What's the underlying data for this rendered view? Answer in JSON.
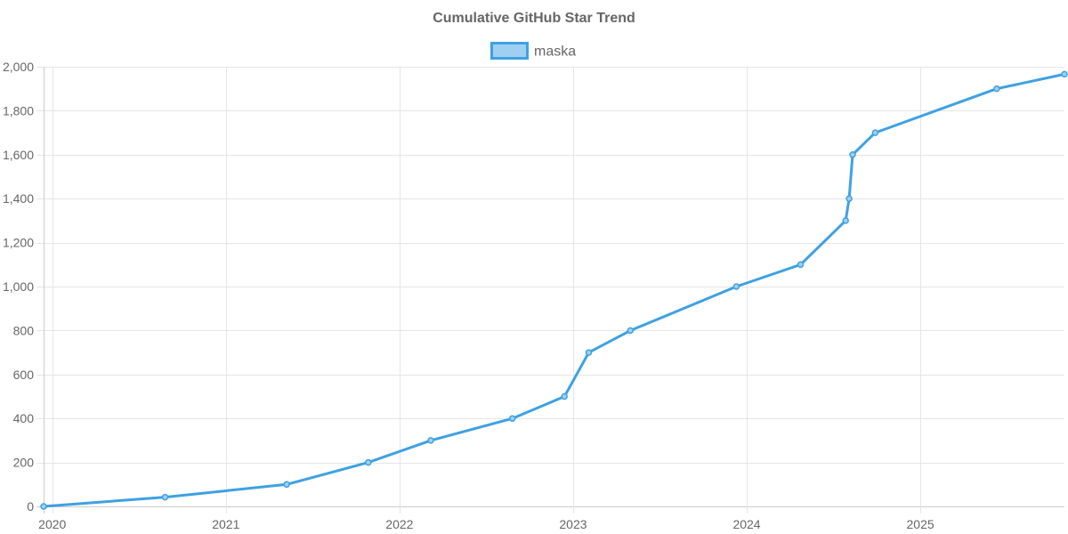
{
  "chart_data": {
    "type": "line",
    "title": "Cumulative GitHub Star Trend",
    "xlabel": "",
    "ylabel": "",
    "ylim": [
      0,
      2000
    ],
    "yticks": [
      0,
      200,
      400,
      600,
      800,
      1000,
      1200,
      1400,
      1600,
      1800,
      2000
    ],
    "ytick_labels": [
      "0",
      "200",
      "400",
      "600",
      "800",
      "1,000",
      "1,200",
      "1,400",
      "1,600",
      "1,800",
      "2,000"
    ],
    "xlim": [
      2019.95,
      2025.83
    ],
    "xticks": [
      2020,
      2021,
      2022,
      2023,
      2024,
      2025
    ],
    "xtick_labels": [
      "2020",
      "2021",
      "2022",
      "2023",
      "2024",
      "2025"
    ],
    "grid": true,
    "legend_position": "top-center",
    "colors": {
      "line": "#3ea1e3",
      "fill": "#9fd0f2"
    },
    "series": [
      {
        "name": "maska",
        "points": [
          {
            "x": 2019.95,
            "y": 0
          },
          {
            "x": 2020.65,
            "y": 42
          },
          {
            "x": 2021.35,
            "y": 100
          },
          {
            "x": 2021.82,
            "y": 200
          },
          {
            "x": 2022.18,
            "y": 300
          },
          {
            "x": 2022.65,
            "y": 400
          },
          {
            "x": 2022.95,
            "y": 500
          },
          {
            "x": 2023.09,
            "y": 700
          },
          {
            "x": 2023.33,
            "y": 800
          },
          {
            "x": 2023.94,
            "y": 1000
          },
          {
            "x": 2024.31,
            "y": 1100
          },
          {
            "x": 2024.57,
            "y": 1300
          },
          {
            "x": 2024.59,
            "y": 1400
          },
          {
            "x": 2024.61,
            "y": 1600
          },
          {
            "x": 2024.74,
            "y": 1700
          },
          {
            "x": 2025.44,
            "y": 1900
          },
          {
            "x": 2025.83,
            "y": 1966
          }
        ]
      }
    ]
  }
}
